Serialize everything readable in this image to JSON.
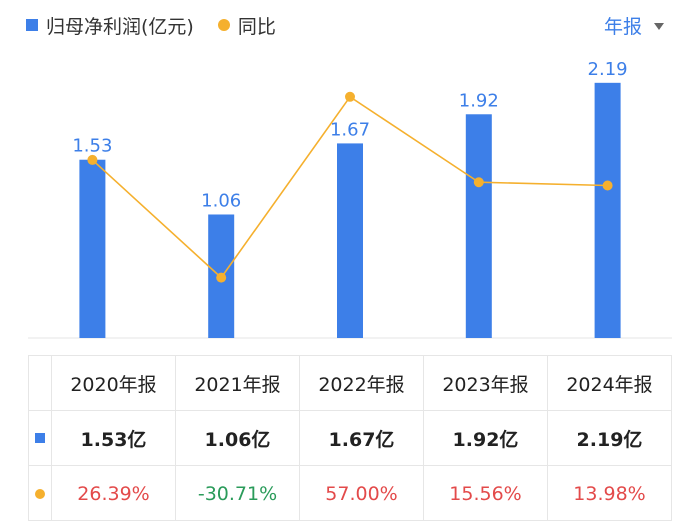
{
  "colors": {
    "bar": "#3d7fe8",
    "line": "#f5b02e",
    "positive": "#e34a4a",
    "negative": "#2a9b5a"
  },
  "legend": {
    "bar_label": "归母净利润(亿元)",
    "line_label": "同比"
  },
  "period_selector": {
    "label": "年报",
    "icon": "caret-down-icon"
  },
  "chart_data": {
    "type": "bar",
    "categories": [
      "2020年报",
      "2021年报",
      "2022年报",
      "2023年报",
      "2024年报"
    ],
    "series": [
      {
        "name": "归母净利润(亿元)",
        "type": "bar",
        "values": [
          1.53,
          1.06,
          1.67,
          1.92,
          2.19
        ],
        "labels": [
          "1.53",
          "1.06",
          "1.67",
          "1.92",
          "2.19"
        ]
      },
      {
        "name": "同比",
        "type": "line",
        "values": [
          26.39,
          -30.71,
          57.0,
          15.56,
          13.98
        ]
      }
    ],
    "bar_ylim": [
      0,
      2.3
    ],
    "line_ylim": [
      -60,
      70
    ],
    "grid": false,
    "legend_position": "top-left"
  },
  "table": {
    "headers": [
      "2020年报",
      "2021年报",
      "2022年报",
      "2023年报",
      "2024年报"
    ],
    "profit_row": [
      "1.53亿",
      "1.06亿",
      "1.67亿",
      "1.92亿",
      "2.19亿"
    ],
    "yoy_row": [
      "26.39%",
      "-30.71%",
      "57.00%",
      "15.56%",
      "13.98%"
    ]
  }
}
